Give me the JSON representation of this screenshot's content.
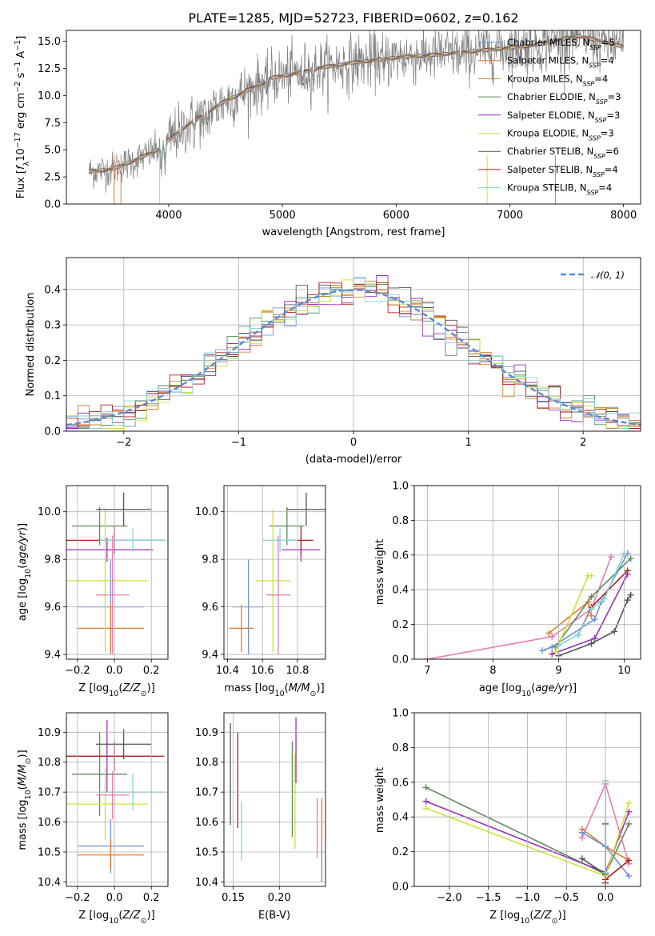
{
  "colors": {
    "Chabrier MILES": "#6f90d8",
    "Salpeter MILES": "#e37a2c",
    "Kroupa MILES": "#c9872e",
    "Chabrier ELODIE": "#5a8a5c",
    "Salpeter ELODIE": "#9b2dbb",
    "Kroupa ELODIE": "#cde33a",
    "Chabrier STELIB": "#555555",
    "Salpeter STELIB": "#b41e1e",
    "Kroupa STELIB": "#7fd6dc",
    "pink": "#e67cb0",
    "data": "#808080",
    "gauss": "#5a8ad6"
  },
  "chart_data": [
    {
      "type": "line",
      "title": "PLATE=1285, MJD=52723, FIBERID=0602, z=0.162",
      "xlabel": "wavelength [Angstrom, rest frame]",
      "ylabel": "Flux [f_λ 10^-17 erg cm^-2 s^-1 A^-1]",
      "xlim": [
        3100,
        8150
      ],
      "ylim": [
        0,
        16
      ],
      "xticks": [
        "4000",
        "5000",
        "6000",
        "7000",
        "8000"
      ],
      "yticks": [
        "0.0",
        "2.5",
        "5.0",
        "7.5",
        "10.0",
        "12.5",
        "15.0"
      ],
      "grid": false,
      "legend": "top-right",
      "series": [
        {
          "name": "Chabrier MILES, N_SSP=5"
        },
        {
          "name": "Salpeter MILES, N_SSP=4"
        },
        {
          "name": "Kroupa MILES, N_SSP=4"
        },
        {
          "name": "Chabrier ELODIE, N_SSP=3"
        },
        {
          "name": "Salpeter ELODIE, N_SSP=3"
        },
        {
          "name": "Kroupa ELODIE, N_SSP=3"
        },
        {
          "name": "Chabrier STELIB, N_SSP=6"
        },
        {
          "name": "Salpeter STELIB, N_SSP=4"
        },
        {
          "name": "Kroupa STELIB, N_SSP=4"
        }
      ],
      "model_continuum": {
        "x": [
          3300,
          3500,
          3700,
          3900,
          4100,
          4300,
          4500,
          4700,
          4900,
          5100,
          5300,
          5600,
          6000,
          6400,
          6800,
          7200,
          7600,
          8000
        ],
        "y": [
          3.0,
          3.2,
          4.0,
          5.0,
          6.8,
          8.2,
          9.5,
          10.5,
          11.6,
          12.0,
          12.5,
          13.0,
          13.5,
          13.8,
          14.2,
          14.6,
          15.5,
          14.5
        ]
      }
    },
    {
      "type": "histogram",
      "xlabel": "(data-model)/error",
      "ylabel": "Normed distribution",
      "xlim": [
        -2.5,
        2.5
      ],
      "ylim": [
        0,
        0.49
      ],
      "xticks": [
        "−2",
        "−1",
        "0",
        "1",
        "2"
      ],
      "yticks": [
        "0.0",
        "0.1",
        "0.2",
        "0.3",
        "0.4"
      ],
      "grid": true,
      "legend": "top-right",
      "reference": {
        "name": "𝒩(0, 1)",
        "mean": 0,
        "sigma": 1
      }
    },
    {
      "type": "scatter",
      "xlabel": "Z [log10(Z/Z⊙)]",
      "ylabel": "age  [log10(age/yr)]",
      "xlim": [
        -0.26,
        0.29
      ],
      "ylim": [
        9.38,
        10.11
      ],
      "xticks": [
        "−0.2",
        "0.0",
        "0.2"
      ],
      "yticks": [
        "9.4",
        "9.6",
        "9.8",
        "10.0"
      ],
      "grid": true,
      "points": [
        {
          "model": "Chabrier MILES",
          "x": -0.02,
          "xerr": 0.18,
          "y": 9.6,
          "yerr": 0.2
        },
        {
          "model": "Salpeter MILES",
          "x": -0.02,
          "xerr": 0.18,
          "y": 9.51,
          "yerr": 0.1
        },
        {
          "model": "Chabrier ELODIE",
          "x": -0.08,
          "xerr": 0.15,
          "y": 9.94,
          "yerr": 0.08
        },
        {
          "model": "Salpeter ELODIE",
          "x": -0.04,
          "xerr": 0.25,
          "y": 9.84,
          "yerr": 0.05
        },
        {
          "model": "Kroupa ELODIE",
          "x": -0.05,
          "xerr": 0.23,
          "y": 9.71,
          "yerr": 0.3
        },
        {
          "model": "Chabrier STELIB",
          "x": 0.05,
          "xerr": 0.15,
          "y": 10.01,
          "yerr": 0.07
        },
        {
          "model": "Salpeter STELIB",
          "x": 0.0,
          "xerr": 0.27,
          "y": 9.88,
          "yerr": 0.06
        },
        {
          "model": "Kroupa STELIB",
          "x": 0.1,
          "xerr": 0.18,
          "y": 9.88,
          "yerr": 0.05
        },
        {
          "model": "pink",
          "x": -0.01,
          "xerr": 0.09,
          "y": 9.65,
          "yerr": 0.25
        }
      ]
    },
    {
      "type": "scatter",
      "xlabel": "mass [log10(M/M⊙)]",
      "xlim": [
        10.38,
        10.96
      ],
      "ylim": [
        9.38,
        10.11
      ],
      "xticks": [
        "10.4",
        "10.6",
        "10.8"
      ],
      "yticks": [
        "9.4",
        "9.6",
        "9.8",
        "10.0"
      ],
      "grid": true,
      "points": [
        {
          "model": "Chabrier MILES",
          "x": 10.52,
          "xerr": 0.09,
          "y": 9.6,
          "yerr": 0.2
        },
        {
          "model": "Salpeter MILES",
          "x": 10.48,
          "xerr": 0.07,
          "y": 9.51,
          "yerr": 0.1
        },
        {
          "model": "Chabrier ELODIE",
          "x": 10.74,
          "xerr": 0.1,
          "y": 9.94,
          "yerr": 0.08
        },
        {
          "model": "Salpeter ELODIE",
          "x": 10.82,
          "xerr": 0.11,
          "y": 9.84,
          "yerr": 0.05
        },
        {
          "model": "Kroupa ELODIE",
          "x": 10.66,
          "xerr": 0.1,
          "y": 9.71,
          "yerr": 0.3
        },
        {
          "model": "Chabrier STELIB",
          "x": 10.85,
          "xerr": 0.11,
          "y": 10.01,
          "yerr": 0.07
        },
        {
          "model": "Salpeter STELIB",
          "x": 10.82,
          "xerr": 0.07,
          "y": 9.88,
          "yerr": 0.06
        },
        {
          "model": "Kroupa STELIB",
          "x": 10.7,
          "xerr": 0.1,
          "y": 9.88,
          "yerr": 0.05
        },
        {
          "model": "pink",
          "x": 10.69,
          "xerr": 0.07,
          "y": 9.65,
          "yerr": 0.25
        }
      ]
    },
    {
      "type": "line",
      "xlabel": "age  [log10(age/yr)]",
      "ylabel": "mass weight",
      "xlim": [
        6.8,
        10.25
      ],
      "ylim": [
        0,
        1
      ],
      "xticks": [
        "7",
        "8",
        "9",
        "10"
      ],
      "yticks": [
        "0.0",
        "0.2",
        "0.4",
        "0.6",
        "0.8",
        "1.0"
      ],
      "grid": true,
      "series": [
        {
          "model": "pink",
          "x": [
            7.0,
            8.9,
            9.5,
            9.8
          ],
          "y": [
            0.0,
            0.13,
            0.29,
            0.59
          ]
        },
        {
          "model": "Salpeter MILES",
          "x": [
            8.85,
            9.45,
            9.5
          ],
          "y": [
            0.15,
            0.33,
            0.25
          ]
        },
        {
          "model": "Chabrier MILES",
          "x": [
            8.75,
            8.9,
            9.55,
            9.65,
            10.05
          ],
          "y": [
            0.05,
            0.07,
            0.23,
            0.33,
            0.61
          ]
        },
        {
          "model": "Chabrier ELODIE",
          "x": [
            8.95,
            9.5,
            10.1
          ],
          "y": [
            0.07,
            0.36,
            0.58
          ]
        },
        {
          "model": "Salpeter ELODIE",
          "x": [
            8.9,
            9.55,
            10.05
          ],
          "y": [
            0.03,
            0.12,
            0.49
          ]
        },
        {
          "model": "Kroupa ELODIE",
          "x": [
            8.95,
            9.45,
            9.5
          ],
          "y": [
            0.04,
            0.48,
            0.48
          ]
        },
        {
          "model": "Chabrier STELIB",
          "x": [
            9.0,
            9.5,
            9.85,
            10.05,
            10.1
          ],
          "y": [
            0.02,
            0.09,
            0.16,
            0.34,
            0.37
          ]
        },
        {
          "model": "Salpeter STELIB",
          "x": [
            9.3,
            9.5,
            10.05
          ],
          "y": [
            0.14,
            0.3,
            0.51
          ]
        },
        {
          "model": "Kroupa STELIB",
          "x": [
            9.0,
            9.3,
            9.5,
            9.7,
            10.0
          ],
          "y": [
            0.08,
            0.14,
            0.29,
            0.35,
            0.61
          ]
        }
      ]
    },
    {
      "type": "scatter",
      "xlabel": "Z [log10(Z/Z⊙)]",
      "ylabel": "mass [log10(M/M⊙)]",
      "xlim": [
        -0.26,
        0.29
      ],
      "ylim": [
        10.385,
        10.965
      ],
      "xticks": [
        "−0.2",
        "0.0",
        "0.2"
      ],
      "yticks": [
        "10.4",
        "10.5",
        "10.6",
        "10.7",
        "10.8",
        "10.9"
      ],
      "grid": true,
      "points": [
        {
          "model": "Chabrier MILES",
          "x": -0.02,
          "xerr": 0.18,
          "y": 10.52,
          "yerr": 0.09
        },
        {
          "model": "Salpeter MILES",
          "x": -0.02,
          "xerr": 0.18,
          "y": 10.49,
          "yerr": 0.05
        },
        {
          "model": "Chabrier ELODIE",
          "x": -0.08,
          "xerr": 0.15,
          "y": 10.76,
          "yerr": 0.14
        },
        {
          "model": "Salpeter ELODIE",
          "x": -0.04,
          "xerr": 0.25,
          "y": 10.82,
          "yerr": 0.12
        },
        {
          "model": "Kroupa ELODIE",
          "x": -0.05,
          "xerr": 0.23,
          "y": 10.66,
          "yerr": 0.12
        },
        {
          "model": "Chabrier STELIB",
          "x": 0.05,
          "xerr": 0.15,
          "y": 10.86,
          "yerr": 0.05
        },
        {
          "model": "Salpeter STELIB",
          "x": 0.0,
          "xerr": 0.27,
          "y": 10.82,
          "yerr": 0.05
        },
        {
          "model": "Kroupa STELIB",
          "x": 0.1,
          "xerr": 0.18,
          "y": 10.7,
          "yerr": 0.06
        },
        {
          "model": "pink",
          "x": -0.01,
          "xerr": 0.09,
          "y": 10.69,
          "yerr": 0.08
        }
      ]
    },
    {
      "type": "scatter",
      "xlabel": "E(B-V)",
      "xlim": [
        0.14,
        0.25
      ],
      "ylim": [
        10.385,
        10.965
      ],
      "xticks": [
        "0.15",
        "0.20"
      ],
      "yticks": [
        "10.4",
        "10.5",
        "10.6",
        "10.7",
        "10.8",
        "10.9"
      ],
      "grid": true,
      "points": [
        {
          "model": "Chabrier STELIB",
          "x": 0.147,
          "y": 10.76,
          "yerr": 0.17
        },
        {
          "model": "Salpeter STELIB",
          "x": 0.155,
          "y": 10.74,
          "yerr": 0.16
        },
        {
          "model": "Kroupa STELIB",
          "x": 0.159,
          "y": 10.57,
          "yerr": 0.1
        },
        {
          "model": "Chabrier ELODIE",
          "x": 0.214,
          "y": 10.71,
          "yerr": 0.16
        },
        {
          "model": "Kroupa ELODIE",
          "x": 0.217,
          "y": 10.67,
          "yerr": 0.16
        },
        {
          "model": "Salpeter ELODIE",
          "x": 0.218,
          "y": 10.84,
          "yerr": 0.11
        },
        {
          "model": "pink",
          "x": 0.241,
          "y": 10.58,
          "yerr": 0.1
        },
        {
          "model": "Salpeter MILES",
          "x": 0.246,
          "y": 10.58,
          "yerr": 0.1
        },
        {
          "model": "Chabrier MILES",
          "x": 0.246,
          "y": 10.46,
          "yerr": 0.06
        }
      ]
    },
    {
      "type": "line",
      "xlabel": "Z [log10(Z/Z⊙)]",
      "ylabel": "mass weight",
      "xlim": [
        -2.45,
        0.45
      ],
      "ylim": [
        0,
        1
      ],
      "xticks": [
        "−2.0",
        "−1.5",
        "−1.0",
        "−0.5",
        "0.0",
        "0.5"
      ],
      "yticks": [
        "0.0",
        "0.2",
        "0.4",
        "0.6",
        "0.8",
        "1.0"
      ],
      "grid": true,
      "series": [
        {
          "model": "Chabrier ELODIE",
          "x": [
            -2.3,
            0.0,
            0.3
          ],
          "y": [
            0.57,
            0.07,
            0.36
          ]
        },
        {
          "model": "Salpeter ELODIE",
          "x": [
            -2.3,
            0.0,
            0.3
          ],
          "y": [
            0.49,
            0.08,
            0.43
          ]
        },
        {
          "model": "Kroupa ELODIE",
          "x": [
            -2.3,
            0.0,
            0.3
          ],
          "y": [
            0.45,
            0.06,
            0.48
          ]
        },
        {
          "model": "Chabrier STELIB",
          "x": [
            -0.3,
            0.0,
            0.0
          ],
          "y": [
            0.16,
            0.07,
            0.36
          ]
        },
        {
          "model": "Salpeter MILES",
          "x": [
            -0.3,
            0.0,
            0.3
          ],
          "y": [
            0.33,
            0.23,
            0.15
          ]
        },
        {
          "model": "pink",
          "x": [
            -0.3,
            0.0,
            0.3
          ],
          "y": [
            0.28,
            0.59,
            0.13
          ]
        },
        {
          "model": "Chabrier MILES",
          "x": [
            -0.3,
            0.0,
            0.3
          ],
          "y": [
            0.31,
            0.23,
            0.06
          ]
        },
        {
          "model": "Kroupa STELIB",
          "x": [
            0.0,
            0.0
          ],
          "y": [
            0.61,
            0.08
          ]
        },
        {
          "model": "Salpeter STELIB",
          "x": [
            0.0,
            0.0,
            0.3
          ],
          "y": [
            0.02,
            0.04,
            0.15
          ]
        }
      ]
    }
  ]
}
